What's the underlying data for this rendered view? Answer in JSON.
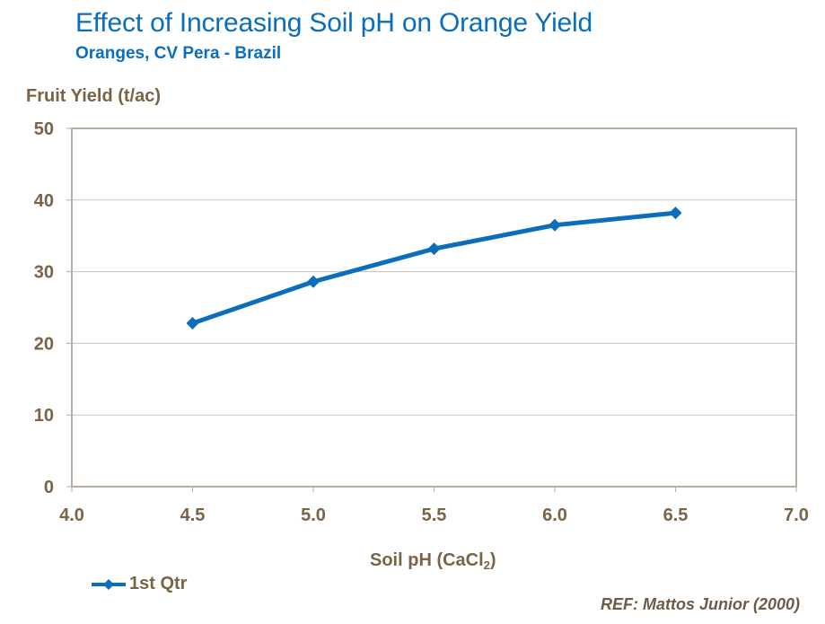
{
  "chart_data": {
    "type": "line",
    "title": "Effect of Increasing Soil pH on Orange Yield",
    "subtitle": "Oranges, CV Pera - Brazil",
    "xlabel": "Soil pH (CaCl",
    "xlabel_sub": "2",
    "xlabel_close": ")",
    "ylabel": "Fruit Yield (t/ac)",
    "xlim": [
      4.0,
      7.0
    ],
    "ylim": [
      0,
      50
    ],
    "x_ticks": [
      4.0,
      4.5,
      5.0,
      5.5,
      6.0,
      6.5,
      7.0
    ],
    "x_tick_labels": [
      "4.0",
      "4.5",
      "5.0",
      "5.5",
      "6.0",
      "6.5",
      "7.0"
    ],
    "y_ticks": [
      0,
      10,
      20,
      30,
      40,
      50
    ],
    "y_tick_labels": [
      "0",
      "10",
      "20",
      "30",
      "40",
      "50"
    ],
    "grid": "horizontal",
    "legend_position": "bottom-left",
    "series": [
      {
        "name": "1st Qtr",
        "color": "#0A6EBD",
        "marker": "diamond",
        "x": [
          4.5,
          5.0,
          5.5,
          6.0,
          6.5
        ],
        "values": [
          22.8,
          28.6,
          33.2,
          36.5,
          38.2
        ]
      }
    ],
    "annotation": "REF: Mattos Junior (2000)"
  },
  "colors": {
    "title": "#0A6EBD",
    "axis_text": "#7A6347",
    "frame": "#B8ADA2",
    "grid": "#C9C0B6"
  }
}
